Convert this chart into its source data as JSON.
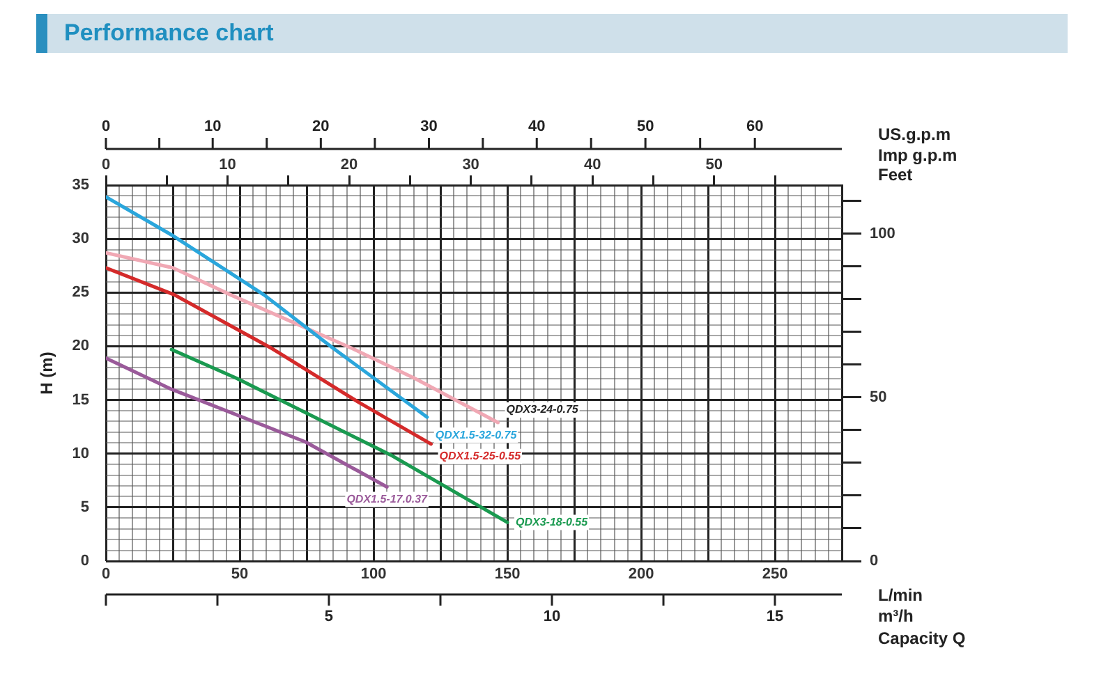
{
  "chart_data": {
    "type": "line",
    "title": "Performance chart",
    "xlabel": "L/min",
    "ylabel": "H (m)",
    "x2label": "Imp g.p.m",
    "y2label": "Feet",
    "marker": "none",
    "grid": true,
    "legend": false,
    "annotations": [
      "US.g.p.m",
      "0",
      "10",
      "20",
      "30",
      "40",
      "50",
      "60",
      "m³/h",
      "5",
      "10",
      "15",
      "Capacity Q"
    ],
    "xlim": [
      0,
      275
    ],
    "xticks": [
      0,
      {
        "value": 5,
        "label": null
      },
      {
        "value": 10,
        "label": null
      },
      {
        "value": 15,
        "label": null
      },
      {
        "value": 20,
        "label": null
      },
      {
        "value": 25,
        "label": null
      },
      {
        "value": 30,
        "label": null
      },
      {
        "value": 35,
        "label": null
      },
      {
        "value": 40,
        "label": null
      },
      {
        "value": 45,
        "label": null
      },
      50,
      {
        "value": 55,
        "label": null
      },
      {
        "value": 60,
        "label": null
      },
      {
        "value": 65,
        "label": null
      },
      {
        "value": 70,
        "label": null
      },
      {
        "value": 75,
        "label": null
      },
      {
        "value": 80,
        "label": null
      },
      {
        "value": 85,
        "label": null
      },
      {
        "value": 90,
        "label": null
      },
      {
        "value": 95,
        "label": null
      },
      100,
      {
        "value": 105,
        "label": null
      },
      {
        "value": 110,
        "label": null
      },
      {
        "value": 115,
        "label": null
      },
      {
        "value": 120,
        "label": null
      },
      {
        "value": 125,
        "label": null
      },
      {
        "value": 130,
        "label": null
      },
      {
        "value": 135,
        "label": null
      },
      {
        "value": 140,
        "label": null
      },
      {
        "value": 145,
        "label": null
      },
      150,
      {
        "value": 155,
        "label": null
      },
      {
        "value": 160,
        "label": null
      },
      {
        "value": 165,
        "label": null
      },
      {
        "value": 170,
        "label": null
      },
      {
        "value": 175,
        "label": null
      },
      {
        "value": 180,
        "label": null
      },
      {
        "value": 185,
        "label": null
      },
      {
        "value": 190,
        "label": null
      },
      {
        "value": 195,
        "label": null
      },
      200,
      {
        "value": 205,
        "label": null
      },
      {
        "value": 210,
        "label": null
      },
      {
        "value": 215,
        "label": null
      },
      {
        "value": 220,
        "label": null
      },
      {
        "value": 225,
        "label": null
      },
      {
        "value": 230,
        "label": null
      },
      {
        "value": 235,
        "label": null
      },
      {
        "value": 240,
        "label": null
      },
      {
        "value": 245,
        "label": null
      },
      250,
      {
        "value": 255,
        "label": null
      },
      {
        "value": 260,
        "label": null
      },
      {
        "value": 265,
        "label": null
      },
      {
        "value": 270,
        "label": null
      },
      {
        "value": 275,
        "label": null
      }
    ],
    "ylim": [
      0,
      35
    ],
    "yticks": [
      0,
      {
        "value": 1,
        "label": null
      },
      {
        "value": 2,
        "label": null
      },
      {
        "value": 3,
        "label": null
      },
      {
        "value": 4,
        "label": null
      },
      5,
      {
        "value": 6,
        "label": null
      },
      {
        "value": 7,
        "label": null
      },
      {
        "value": 8,
        "label": null
      },
      {
        "value": 9,
        "label": null
      },
      10,
      {
        "value": 11,
        "label": null
      },
      {
        "value": 12,
        "label": null
      },
      {
        "value": 13,
        "label": null
      },
      {
        "value": 14,
        "label": null
      },
      15,
      {
        "value": 16,
        "label": null
      },
      {
        "value": 17,
        "label": null
      },
      {
        "value": 18,
        "label": null
      },
      {
        "value": 19,
        "label": null
      },
      20,
      {
        "value": 21,
        "label": null
      },
      {
        "value": 22,
        "label": null
      },
      {
        "value": 23,
        "label": null
      },
      {
        "value": 24,
        "label": null
      },
      25,
      {
        "value": 26,
        "label": null
      },
      {
        "value": 27,
        "label": null
      },
      {
        "value": 28,
        "label": null
      },
      {
        "value": 29,
        "label": null
      },
      30,
      {
        "value": 31,
        "label": null
      },
      {
        "value": 32,
        "label": null
      },
      {
        "value": 33,
        "label": null
      },
      {
        "value": 34,
        "label": null
      },
      35
    ],
    "x2lim": [
      0,
      60.5
    ],
    "x2ticks": [
      0,
      {
        "value": 5,
        "label": null
      },
      10,
      {
        "value": 15,
        "label": null
      },
      20,
      {
        "value": 25,
        "label": null
      },
      30,
      {
        "value": 35,
        "label": null
      },
      40,
      {
        "value": 45,
        "label": null
      },
      50,
      {
        "value": 55,
        "label": null
      }
    ],
    "y2lim": [
      0,
      114.8
    ],
    "y2ticks": [
      0,
      {
        "value": 10,
        "label": null
      },
      {
        "value": 20,
        "label": null
      },
      {
        "value": 30,
        "label": null
      },
      {
        "value": 40,
        "label": null
      },
      50,
      {
        "value": 60,
        "label": null
      },
      {
        "value": 70,
        "label": null
      },
      {
        "value": 80,
        "label": null
      },
      {
        "value": 90,
        "label": null
      },
      100,
      {
        "value": 110,
        "label": null
      }
    ],
    "series": [
      {
        "name": "QDX1.5-32-0.75",
        "color": "#2aa6dc",
        "x": [
          0,
          25,
          59,
          85,
          120
        ],
        "values": [
          33.9,
          30.3,
          24.8,
          19.8,
          13.4
        ]
      },
      {
        "name": "QDX3-24-0.75",
        "color": "#f0a8b4",
        "x": [
          0,
          25,
          46.5,
          92,
          115.5,
          146.5
        ],
        "values": [
          28.7,
          27.3,
          24.8,
          19.8,
          17,
          12.9
        ]
      },
      {
        "name": "QDX1.5-25-0.55",
        "color": "#d42a2a",
        "x": [
          0,
          25.5,
          62,
          95,
          121.5
        ],
        "values": [
          27.3,
          24.8,
          19.8,
          14.7,
          10.9
        ]
      },
      {
        "name": "QDX3-18-0.55",
        "color": "#1a9a50",
        "x": [
          24.5,
          49,
          107,
          150
        ],
        "values": [
          19.7,
          17,
          9.8,
          3.6
        ]
      },
      {
        "name": "QDX1.5-17.0.37",
        "color": "#9a5a9a",
        "x": [
          0,
          24.5,
          74.5,
          105
        ],
        "values": [
          18.9,
          16,
          11.1,
          6.9
        ]
      }
    ]
  }
}
